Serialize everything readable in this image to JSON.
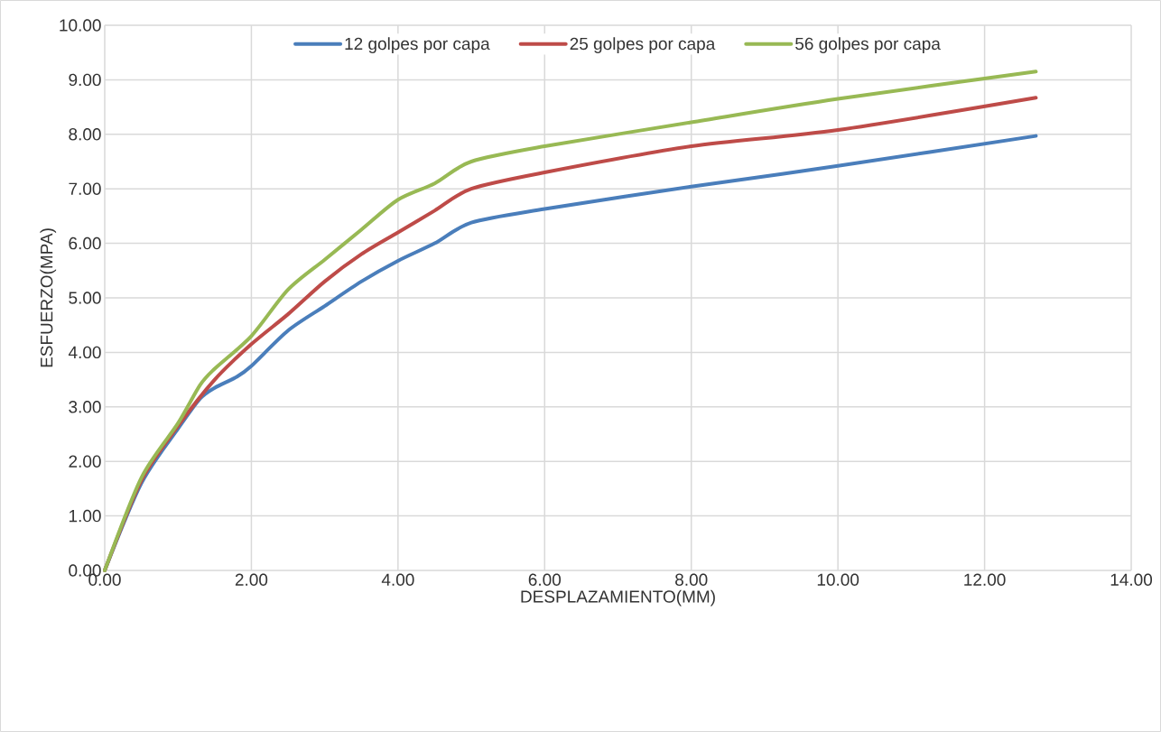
{
  "chart_data": {
    "type": "line",
    "xlabel": "DESPLAZAMIENTO(MM)",
    "ylabel": "ESFUERZO(MPA)",
    "xlim": [
      0,
      14
    ],
    "ylim": [
      0,
      10
    ],
    "xticks": [
      {
        "value": 0,
        "label": "0.00"
      },
      {
        "value": 2,
        "label": "2.00"
      },
      {
        "value": 4,
        "label": "4.00"
      },
      {
        "value": 6,
        "label": "6.00"
      },
      {
        "value": 8,
        "label": "8.00"
      },
      {
        "value": 10,
        "label": "10.00"
      },
      {
        "value": 12,
        "label": "12.00"
      },
      {
        "value": 14,
        "label": "14.00"
      }
    ],
    "yticks": [
      {
        "value": 0,
        "label": "0.00"
      },
      {
        "value": 1,
        "label": "1.00"
      },
      {
        "value": 2,
        "label": "2.00"
      },
      {
        "value": 3,
        "label": "3.00"
      },
      {
        "value": 4,
        "label": "4.00"
      },
      {
        "value": 5,
        "label": "5.00"
      },
      {
        "value": 6,
        "label": "6.00"
      },
      {
        "value": 7,
        "label": "7.00"
      },
      {
        "value": 8,
        "label": "8.00"
      },
      {
        "value": 9,
        "label": "9.00"
      },
      {
        "value": 10,
        "label": "10.00"
      }
    ],
    "grid": true,
    "legend": "top",
    "marker": "none",
    "line_style": "solid",
    "series": [
      {
        "name": "12 golpes por capa",
        "color": "#4a7ebb",
        "x": [
          0,
          0.5,
          1.0,
          1.3,
          1.5,
          1.8,
          2.0,
          2.5,
          3.0,
          3.5,
          4.0,
          4.5,
          5.0,
          6.0,
          8.0,
          10.0,
          12.7
        ],
        "values": [
          0,
          1.6,
          2.6,
          3.15,
          3.35,
          3.55,
          3.75,
          4.4,
          4.85,
          5.3,
          5.68,
          6.0,
          6.38,
          6.63,
          7.04,
          7.42,
          7.97
        ]
      },
      {
        "name": "25 golpes por capa",
        "color": "#be4b48",
        "x": [
          0,
          0.5,
          1.0,
          1.5,
          2.0,
          2.5,
          3.0,
          3.5,
          4.0,
          4.5,
          5.0,
          6.0,
          8.0,
          10.0,
          12.7
        ],
        "values": [
          0,
          1.65,
          2.65,
          3.5,
          4.15,
          4.7,
          5.3,
          5.8,
          6.2,
          6.6,
          7.0,
          7.3,
          7.78,
          8.08,
          8.67
        ]
      },
      {
        "name": "56 golpes por capa",
        "color": "#98b954",
        "x": [
          0,
          0.5,
          1.0,
          1.3,
          1.5,
          2.0,
          2.5,
          3.0,
          3.5,
          4.0,
          4.5,
          5.0,
          6.0,
          8.0,
          10.0,
          12.7
        ],
        "values": [
          0,
          1.7,
          2.7,
          3.4,
          3.7,
          4.3,
          5.15,
          5.7,
          6.25,
          6.8,
          7.1,
          7.5,
          7.78,
          8.22,
          8.65,
          9.15
        ]
      }
    ]
  }
}
